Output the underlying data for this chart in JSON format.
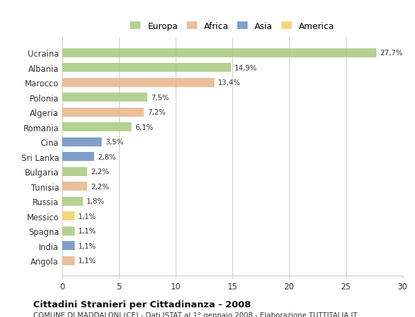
{
  "countries": [
    "Ucraina",
    "Albania",
    "Marocco",
    "Polonia",
    "Algeria",
    "Romania",
    "Cina",
    "Sri Lanka",
    "Bulgaria",
    "Tunisia",
    "Russia",
    "Messico",
    "Spagna",
    "India",
    "Angola"
  ],
  "values": [
    27.7,
    14.9,
    13.4,
    7.5,
    7.2,
    6.1,
    3.5,
    2.8,
    2.2,
    2.2,
    1.8,
    1.1,
    1.1,
    1.1,
    1.1
  ],
  "labels": [
    "27,7%",
    "14,9%",
    "13,4%",
    "7,5%",
    "7,2%",
    "6,1%",
    "3,5%",
    "2,8%",
    "2,2%",
    "2,2%",
    "1,8%",
    "1,1%",
    "1,1%",
    "1,1%",
    "1,1%"
  ],
  "continents": [
    "Europa",
    "Europa",
    "Africa",
    "Europa",
    "Africa",
    "Europa",
    "Asia",
    "Asia",
    "Europa",
    "Africa",
    "Europa",
    "America",
    "Europa",
    "Asia",
    "Africa"
  ],
  "colors": {
    "Europa": "#a8c97f",
    "Africa": "#e8b48a",
    "Asia": "#6b8ec4",
    "America": "#f0d060"
  },
  "legend_order": [
    "Europa",
    "Africa",
    "Asia",
    "America"
  ],
  "xlim": [
    0,
    30
  ],
  "xticks": [
    0,
    5,
    10,
    15,
    20,
    25,
    30
  ],
  "title": "Cittadini Stranieri per Cittadinanza - 2008",
  "subtitle": "COMUNE DI MADDALONI (CE) - Dati ISTAT al 1° gennaio 2008 - Elaborazione TUTTITALIA.IT",
  "background_color": "#ffffff",
  "bar_height": 0.6,
  "grid_color": "#cccccc"
}
